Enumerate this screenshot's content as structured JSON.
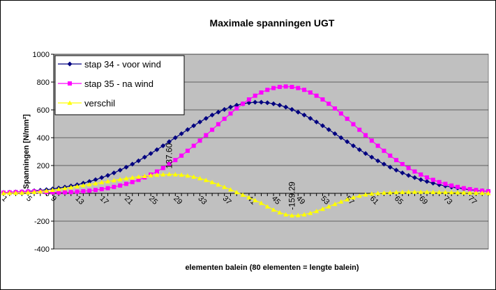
{
  "chart_data": {
    "type": "line",
    "title": "Maximale spanningen UGT",
    "ylabel": "Spanningen [N/mm²]",
    "xlabel": "elementen balein (80 elementen = lengte balein)",
    "categories": [
      1,
      null,
      null,
      null,
      5,
      null,
      null,
      null,
      9,
      null,
      null,
      null,
      13,
      null,
      null,
      null,
      17,
      null,
      null,
      null,
      21,
      null,
      null,
      null,
      25,
      null,
      null,
      null,
      29,
      null,
      null,
      null,
      33,
      null,
      null,
      null,
      37,
      null,
      null,
      null,
      41,
      null,
      null,
      null,
      45,
      null,
      null,
      null,
      49,
      null,
      null,
      null,
      53,
      null,
      null,
      null,
      57,
      null,
      null,
      null,
      61,
      null,
      null,
      null,
      65,
      null,
      null,
      null,
      69,
      null,
      null,
      null,
      73,
      null,
      null,
      null,
      77,
      null,
      null,
      null
    ],
    "ylim": [
      -400,
      1000
    ],
    "yticks": [
      -400,
      -200,
      0,
      200,
      400,
      600,
      800,
      1000
    ],
    "grid": true,
    "legend": "top-left",
    "series": [
      {
        "name": "stap 34 - voor wind",
        "color": "#000080",
        "marker": "diamond",
        "values": [
          6,
          8,
          10,
          12,
          15,
          18,
          22,
          26,
          32,
          38,
          45,
          53,
          62,
          73,
          85,
          98,
          113,
          129,
          147,
          167,
          188,
          210,
          234,
          260,
          286,
          314,
          342,
          371,
          400,
          429,
          458,
          486,
          513,
          539,
          563,
          584,
          603,
          620,
          634,
          644,
          651,
          655,
          655,
          651,
          644,
          634,
          620,
          603,
          584,
          563,
          539,
          513,
          486,
          458,
          429,
          400,
          371,
          342,
          314,
          286,
          260,
          234,
          210,
          188,
          167,
          147,
          129,
          113,
          98,
          85,
          73,
          62,
          53,
          45,
          38,
          32,
          26,
          22,
          18,
          15
        ]
      },
      {
        "name": "stap 35 - na wind",
        "color": "#ff00ff",
        "marker": "square",
        "values": [
          5,
          7,
          9,
          11,
          13,
          14,
          12,
          9,
          7,
          6,
          7,
          9,
          12,
          15,
          19,
          24,
          30,
          37,
          46,
          56,
          68,
          81,
          97,
          114,
          135,
          157,
          182,
          210,
          239,
          271,
          306,
          342,
          379,
          418,
          457,
          497,
          536,
          574,
          610,
          644,
          675,
          702,
          725,
          744,
          757,
          765,
          768,
          765,
          757,
          744,
          725,
          702,
          675,
          644,
          610,
          574,
          536,
          497,
          457,
          418,
          379,
          342,
          306,
          271,
          239,
          210,
          182,
          157,
          135,
          114,
          97,
          81,
          68,
          56,
          46,
          37,
          30,
          24,
          19,
          15
        ]
      },
      {
        "name": "verschil",
        "color": "#ffff00",
        "marker": "triangle",
        "values": [
          1,
          2,
          3,
          4,
          6,
          9,
          13,
          18,
          24,
          30,
          36,
          43,
          50,
          57,
          64,
          71,
          79,
          86,
          93,
          100,
          107,
          113,
          119,
          124,
          129,
          133,
          136,
          137.6,
          136,
          133,
          127,
          119,
          108,
          95,
          80,
          63,
          45,
          27,
          8,
          -11,
          -30,
          -50,
          -70,
          -95,
          -118,
          -138,
          -152,
          -159.29,
          -158,
          -152,
          -142,
          -128,
          -112,
          -95,
          -77,
          -60,
          -44,
          -30,
          -18,
          -9,
          -3,
          1,
          4,
          6,
          8,
          9,
          10,
          10,
          10,
          10,
          9,
          8,
          8,
          7,
          6,
          5,
          4,
          3,
          2,
          1
        ],
        "value_labels": [
          null,
          null,
          null,
          null,
          null,
          null,
          null,
          null,
          null,
          null,
          null,
          null,
          null,
          null,
          null,
          null,
          null,
          null,
          null,
          null,
          null,
          null,
          null,
          null,
          null,
          null,
          null,
          "137.60",
          null,
          null,
          null,
          null,
          null,
          null,
          null,
          null,
          null,
          null,
          null,
          null,
          null,
          null,
          null,
          null,
          null,
          null,
          null,
          "-159.29",
          null,
          null,
          null,
          null,
          null,
          null,
          null,
          null,
          null,
          null,
          null,
          null,
          null,
          null,
          null,
          null,
          null,
          null,
          null,
          null,
          null,
          null,
          null,
          null,
          null,
          null,
          null,
          null,
          null,
          null,
          null,
          null
        ]
      }
    ]
  }
}
